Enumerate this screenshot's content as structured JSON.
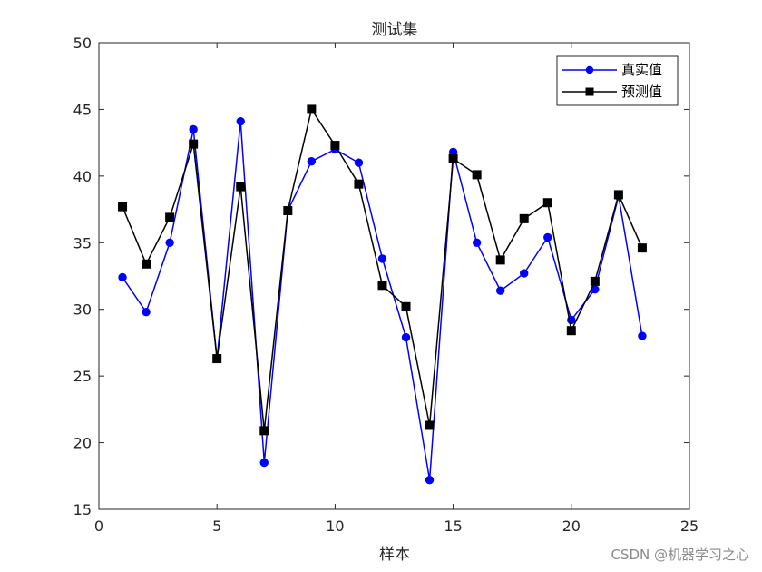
{
  "chart_data": {
    "type": "line",
    "title": "测试集",
    "xlabel": "样本",
    "ylabel": "",
    "xlim": [
      0,
      25
    ],
    "ylim": [
      15,
      50
    ],
    "xticks": [
      0,
      5,
      10,
      15,
      20,
      25
    ],
    "yticks": [
      15,
      20,
      25,
      30,
      35,
      40,
      45,
      50
    ],
    "grid": false,
    "legend_position": "top-right",
    "x": [
      1,
      2,
      3,
      4,
      5,
      6,
      7,
      8,
      9,
      10,
      11,
      12,
      13,
      14,
      15,
      16,
      17,
      18,
      19,
      20,
      21,
      22,
      23
    ],
    "series": [
      {
        "name": "真实值",
        "color": "#0000ff",
        "marker": "circle",
        "values": [
          32.4,
          29.8,
          35.0,
          43.5,
          26.3,
          44.1,
          18.5,
          37.4,
          41.1,
          42.0,
          41.0,
          33.8,
          27.9,
          17.2,
          41.8,
          35.0,
          31.4,
          32.7,
          35.4,
          29.2,
          31.5,
          38.5,
          28.0
        ]
      },
      {
        "name": "预测值",
        "color": "#000000",
        "marker": "square",
        "values": [
          37.7,
          33.4,
          36.9,
          42.4,
          26.3,
          39.2,
          20.9,
          37.4,
          45.0,
          42.3,
          39.4,
          31.8,
          30.2,
          21.3,
          41.3,
          40.1,
          33.7,
          36.8,
          38.0,
          28.4,
          32.1,
          38.6,
          34.6
        ]
      }
    ]
  },
  "watermark": "CSDN @机器学习之心"
}
